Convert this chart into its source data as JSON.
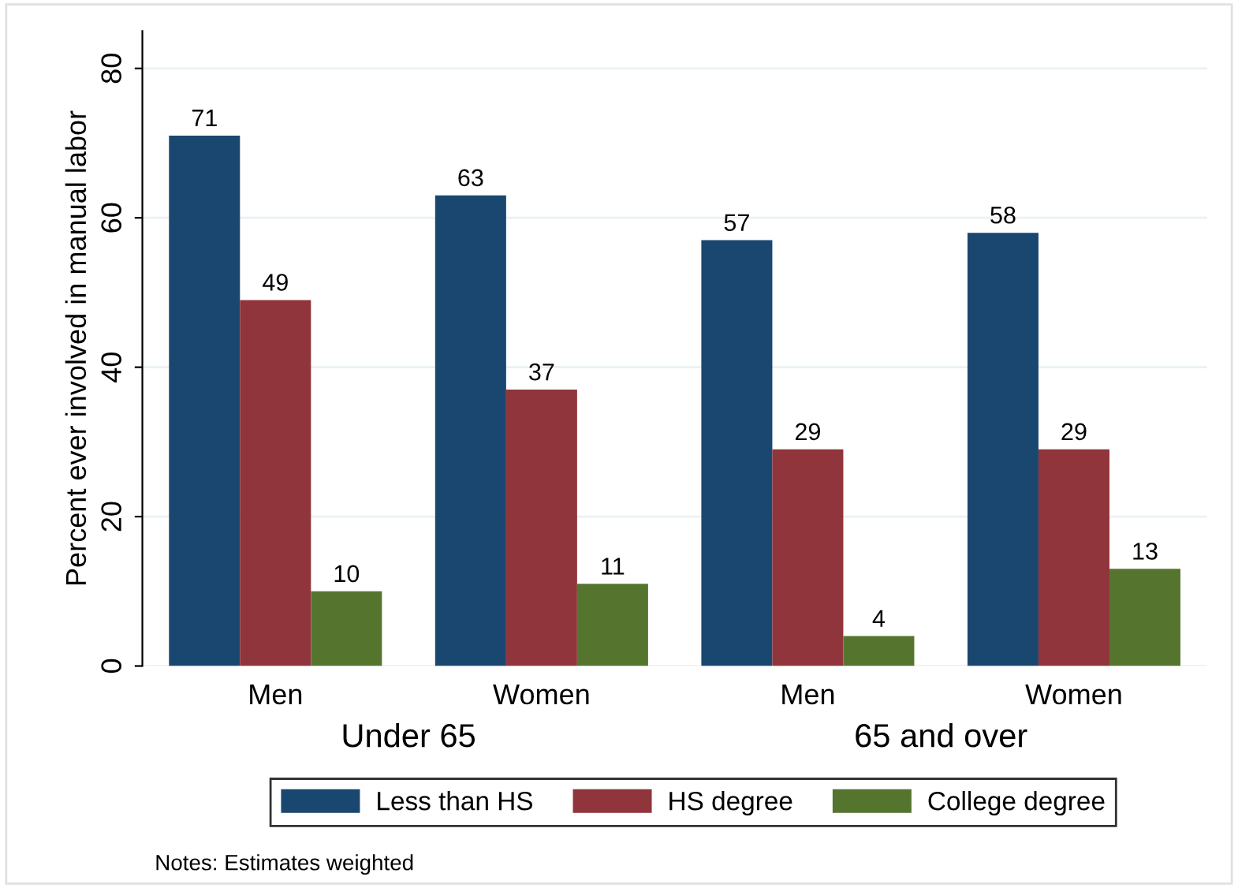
{
  "chart_data": {
    "type": "bar",
    "categories": [
      "Men",
      "Women",
      "Men",
      "Women"
    ],
    "series": [
      {
        "name": "Less than HS",
        "color": "#1a476f",
        "values": [
          71,
          63,
          57,
          58
        ]
      },
      {
        "name": "HS degree",
        "color": "#90353b",
        "values": [
          49,
          37,
          29,
          29
        ]
      },
      {
        "name": "College degree",
        "color": "#55752f",
        "values": [
          10,
          11,
          4,
          13
        ]
      }
    ],
    "ylabel": "Percent ever involved in manual labor",
    "ylim": [
      0,
      85
    ],
    "yticks": [
      0,
      20,
      40,
      60,
      80
    ],
    "grid": "y",
    "legend": "bottom",
    "data_labels": true,
    "annotations": [
      "Under 65",
      "65 and over",
      "Notes: Estimates weighted"
    ]
  }
}
